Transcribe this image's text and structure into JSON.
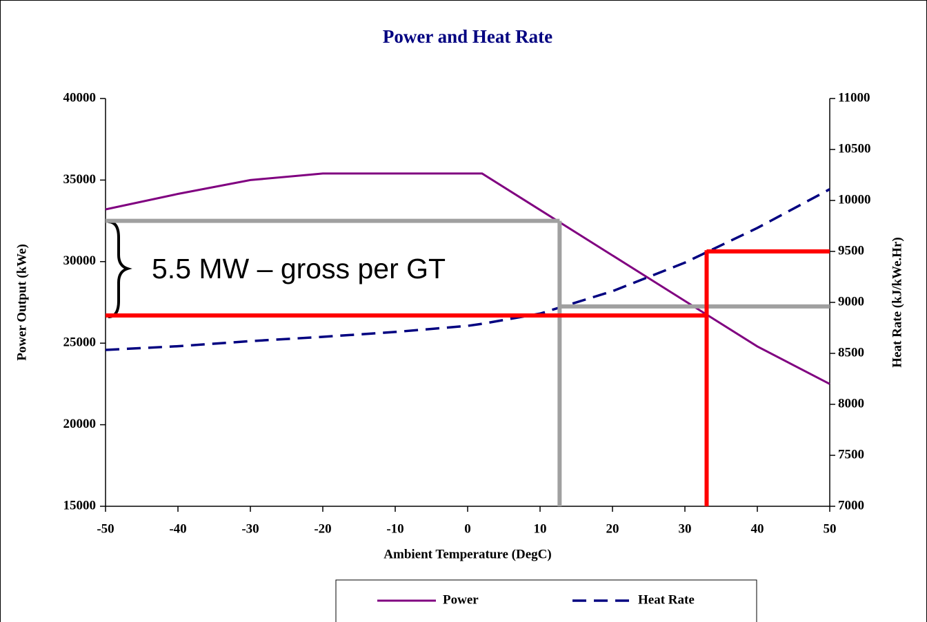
{
  "chart_data": {
    "type": "line",
    "title": "Power and Heat Rate",
    "x_label": "Ambient Temperature (DegC)",
    "y_label": "Power Output (kWe)",
    "y2_label": "Heat Rate (kJ/kWe.Hr)",
    "xlim": [
      -50,
      50
    ],
    "xticks": [
      -50,
      -40,
      -30,
      -20,
      -10,
      0,
      10,
      20,
      30,
      40,
      50
    ],
    "ylim": [
      15000,
      40000
    ],
    "yticks": [
      15000,
      20000,
      25000,
      30000,
      35000,
      40000
    ],
    "y2lim": [
      7000,
      11000
    ],
    "y2ticks": [
      7000,
      7500,
      8000,
      8500,
      9000,
      9500,
      10000,
      10500,
      11000
    ],
    "series": [
      {
        "name": "Power",
        "color": "#800080",
        "axis": "y",
        "x": [
          -50,
          -40,
          -30,
          -20,
          2,
          40,
          50
        ],
        "values": [
          33200,
          34150,
          35000,
          35400,
          35400,
          24800,
          22500
        ]
      },
      {
        "name": "Heat Rate",
        "color": "#000080",
        "axis": "y2",
        "x": [
          -50,
          -40,
          -30,
          -20,
          -10,
          0,
          2,
          10,
          20,
          30,
          40,
          50
        ],
        "values": [
          8534,
          8570,
          8620,
          8662,
          8710,
          8770,
          8790,
          8890,
          9110,
          9390,
          9730,
          10110
        ]
      }
    ],
    "reference_lines": [
      {
        "color": "#a0a0a0",
        "axis": "y",
        "x": [
          -50,
          12.7
        ],
        "values": [
          32500,
          32500
        ]
      },
      {
        "color": "#a0a0a0",
        "axis": "y",
        "x": [
          12.7,
          12.7
        ],
        "values": [
          32500,
          15000
        ]
      },
      {
        "color": "#a0a0a0",
        "axis": "y2",
        "x": [
          12.7,
          50
        ],
        "values": [
          8960,
          8960
        ]
      },
      {
        "color": "#ff0000",
        "axis": "y",
        "x": [
          -50,
          33
        ],
        "values": [
          26700,
          26700
        ]
      },
      {
        "color": "#ff0000",
        "axis": "y",
        "x": [
          33,
          33
        ],
        "values": [
          15000,
          30700
        ]
      },
      {
        "color": "#ff0000",
        "axis": "y2",
        "x": [
          33,
          50
        ],
        "values": [
          9500,
          9500
        ]
      }
    ],
    "annotation": "5.5 MW – gross per GT"
  }
}
